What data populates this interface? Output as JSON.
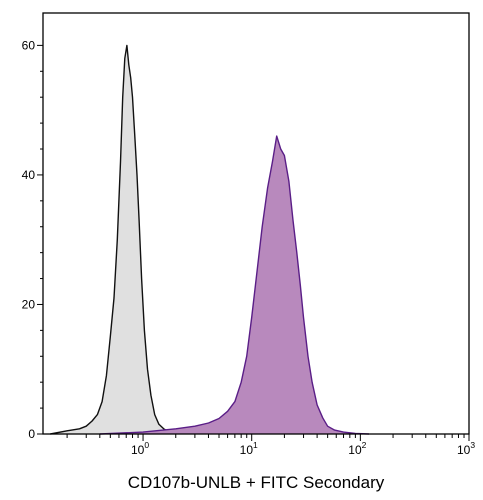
{
  "chart_data": {
    "type": "area",
    "title": "",
    "xlabel": "CD107b-UNLB + FITC Secondary",
    "ylabel": "",
    "x_scale": "log",
    "xlim": [
      0.12,
      1000
    ],
    "ylim": [
      0,
      65
    ],
    "y_ticks": [
      "0",
      "20",
      "40",
      "60"
    ],
    "x_ticks": [
      {
        "base": "10",
        "exp": "0"
      },
      {
        "base": "10",
        "exp": "1"
      },
      {
        "base": "10",
        "exp": "2"
      },
      {
        "base": "10",
        "exp": "3"
      }
    ],
    "grid": false,
    "legend": "none",
    "series": [
      {
        "fill": "#e0e0e0",
        "stroke": "#111111",
        "x": [
          0.14,
          0.2,
          0.26,
          0.3,
          0.34,
          0.38,
          0.42,
          0.46,
          0.5,
          0.54,
          0.58,
          0.62,
          0.65,
          0.68,
          0.71,
          0.74,
          0.77,
          0.8,
          0.84,
          0.88,
          0.92,
          0.97,
          1.03,
          1.1,
          1.18,
          1.28,
          1.4,
          1.55,
          1.75,
          2.0
        ],
        "y": [
          0,
          0.5,
          0.8,
          1.2,
          2,
          3,
          5,
          9,
          15,
          21,
          30,
          42,
          52,
          58,
          60,
          57,
          55,
          52,
          46,
          40,
          33,
          24,
          16,
          10,
          6,
          3,
          1.5,
          0.8,
          0.3,
          0
        ]
      },
      {
        "fill": "#b889bd",
        "stroke": "#5a1e87",
        "x": [
          0.4,
          1.0,
          2.0,
          3.0,
          4.0,
          5.0,
          6.0,
          7.0,
          8.0,
          9.0,
          10.0,
          11.0,
          12.5,
          14.0,
          15.5,
          17.0,
          18.5,
          20.0,
          22.0,
          24.0,
          26.0,
          28.0,
          30.0,
          33.0,
          36.0,
          40.0,
          45.0,
          50.0,
          58.0,
          70.0,
          90.0,
          120.0
        ],
        "y": [
          0,
          0.3,
          0.8,
          1.2,
          1.7,
          2.4,
          3.5,
          5,
          8,
          12,
          18,
          24,
          32,
          38,
          42,
          46,
          44,
          43,
          39,
          33,
          28,
          23,
          18,
          12,
          8,
          4.5,
          2.5,
          1.2,
          0.6,
          0.3,
          0.1,
          0
        ]
      }
    ]
  }
}
